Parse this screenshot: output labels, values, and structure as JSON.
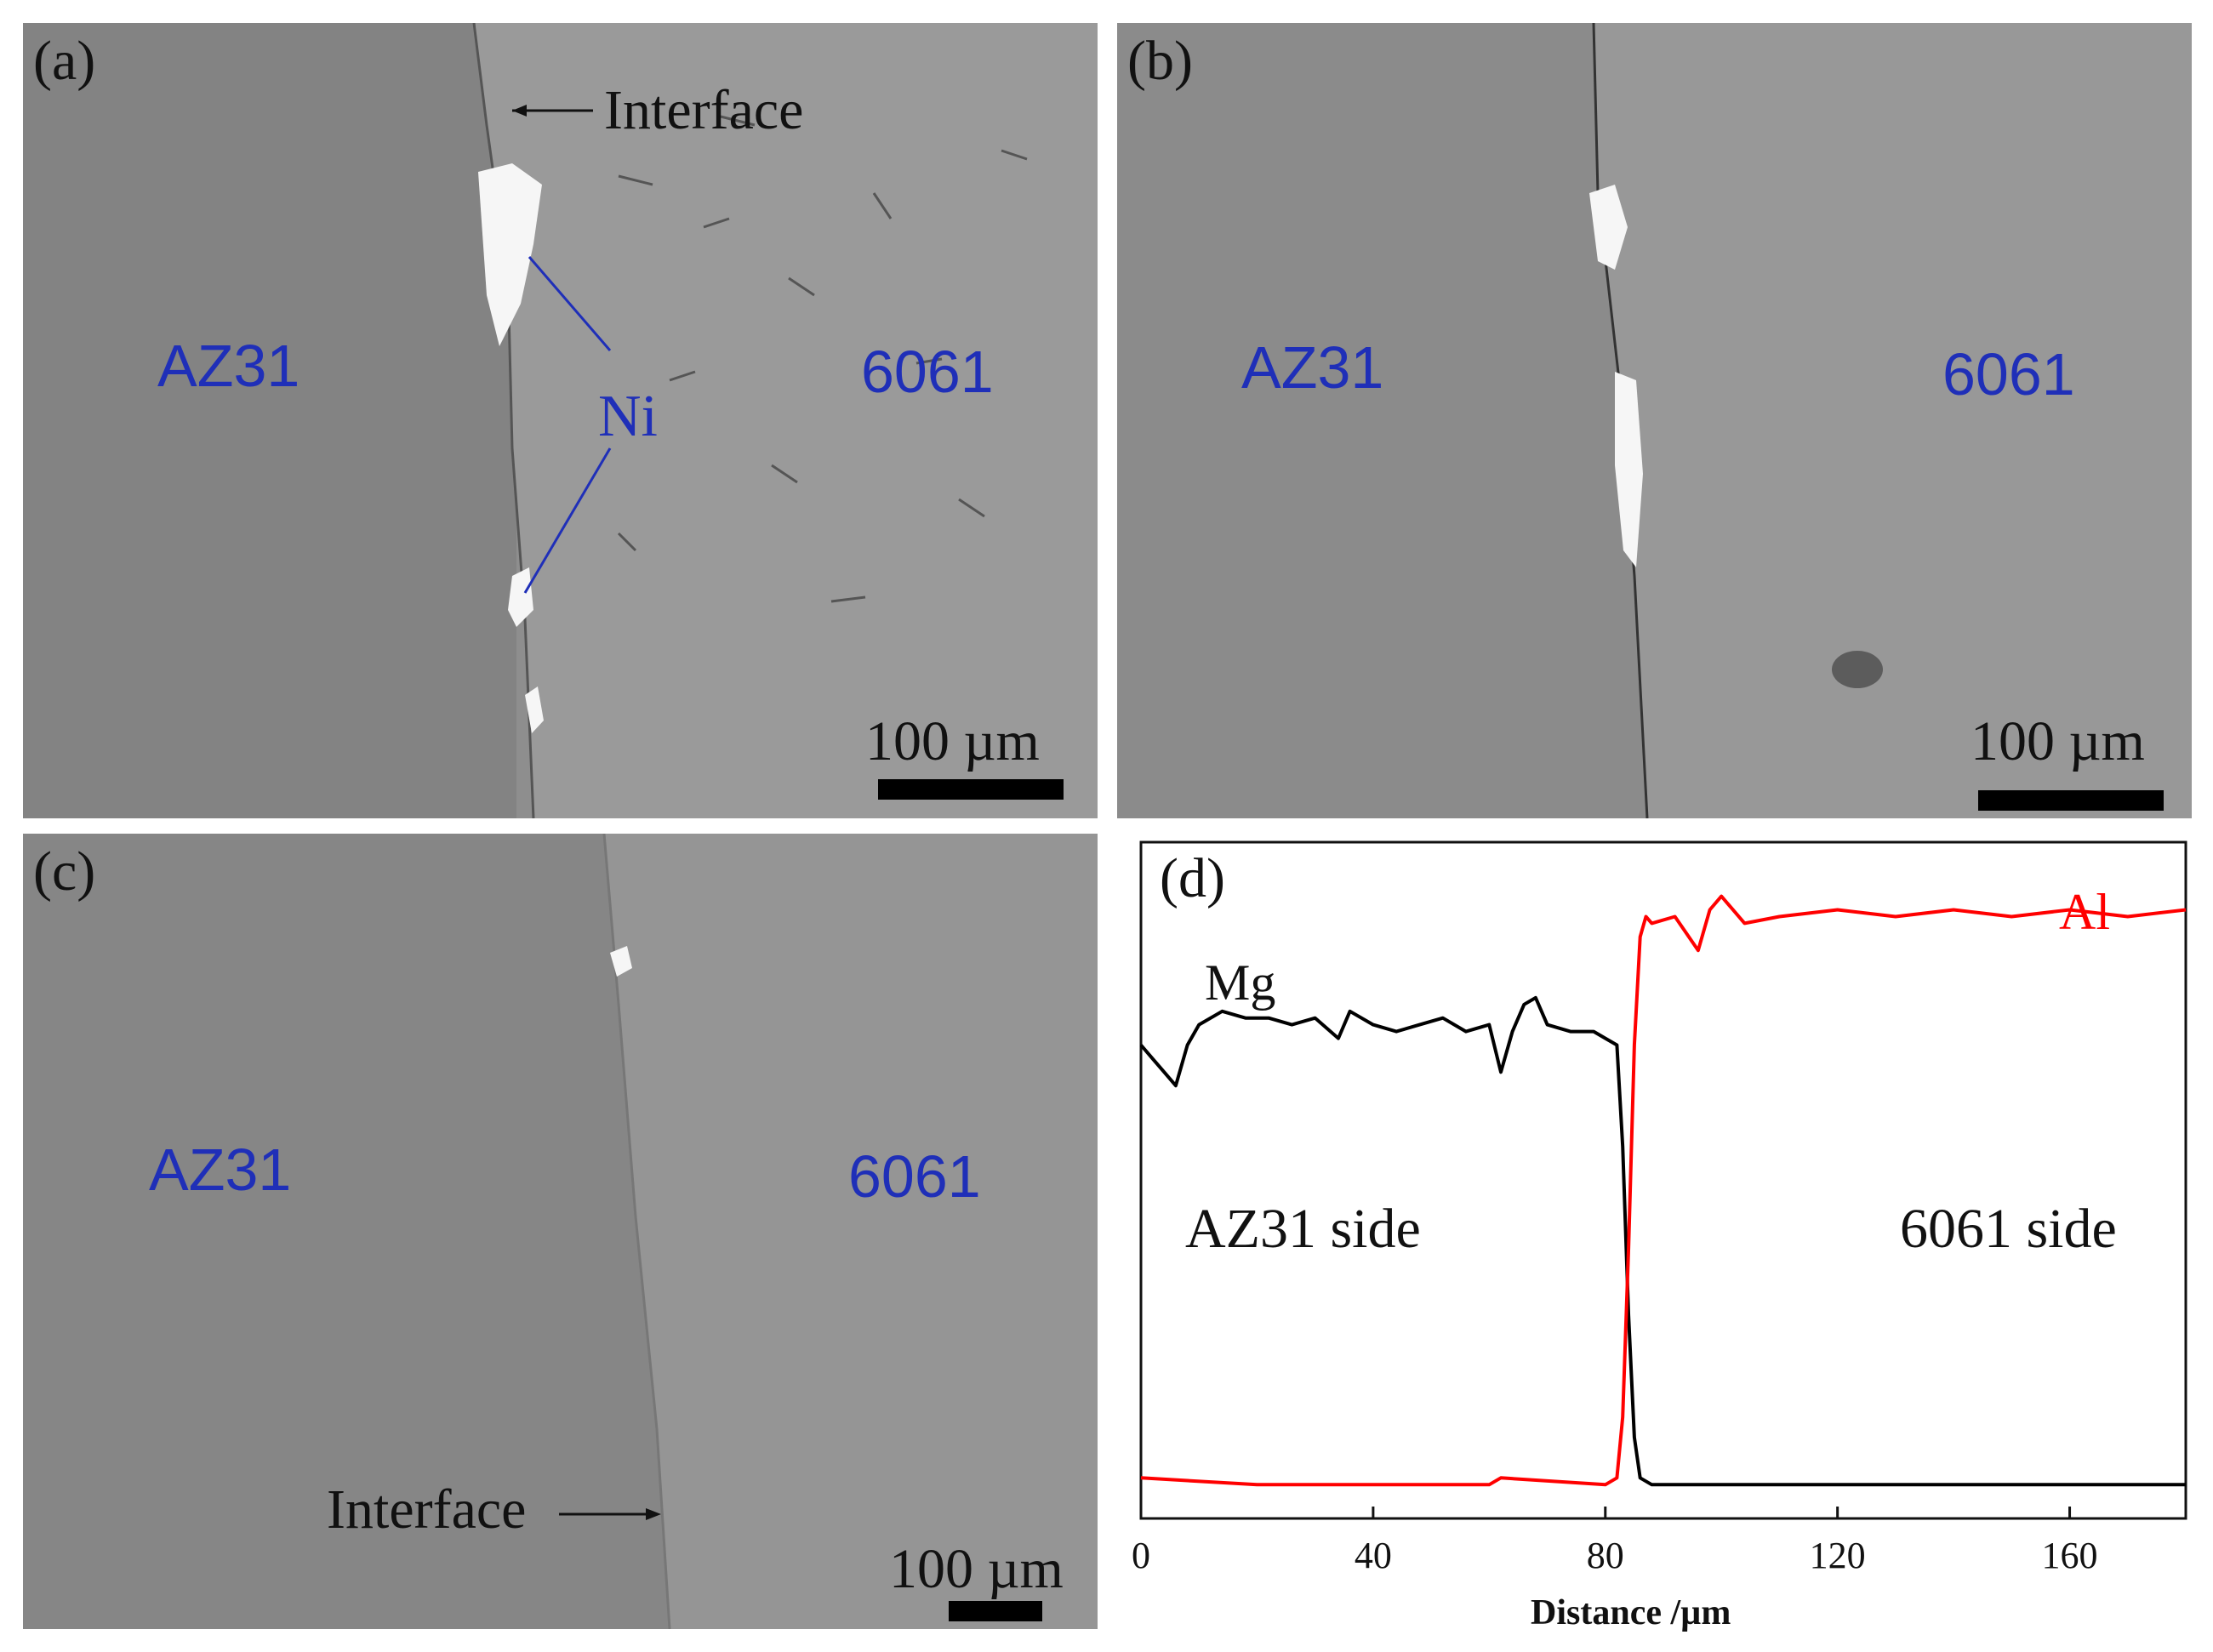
{
  "figure": {
    "panel_a": {
      "label": "(a)",
      "left_material": "AZ31",
      "right_material": "6061",
      "interface_label": "Interface",
      "particle_label": "Ni",
      "scale_bar": "100 µm"
    },
    "panel_b": {
      "label": "(b)",
      "left_material": "AZ31",
      "right_material": "6061",
      "scale_bar": "100 µm"
    },
    "panel_c": {
      "label": "(c)",
      "left_material": "AZ31",
      "right_material": "6061",
      "interface_label": "Interface",
      "scale_bar": "100 µm"
    },
    "panel_d": {
      "label": "(d)",
      "left_side_label": "AZ31 side",
      "right_side_label": "6061 side"
    }
  },
  "colors": {
    "mg_line": "#000000",
    "al_line": "#ff0000",
    "material_label": "#1f2fb8"
  },
  "chart_data": {
    "type": "line",
    "xlabel": "Distance /µm",
    "ylabel": "",
    "xlim": [
      0,
      180
    ],
    "ylim": [
      0,
      1
    ],
    "xticks": [
      0,
      40,
      80,
      120,
      160
    ],
    "series": [
      {
        "name": "Mg",
        "x": [
          0,
          2,
          4,
          6,
          8,
          10,
          14,
          18,
          22,
          26,
          30,
          34,
          36,
          40,
          44,
          48,
          52,
          56,
          60,
          62,
          64,
          66,
          68,
          70,
          74,
          78,
          80,
          82,
          83,
          84,
          85,
          86,
          88,
          100,
          120,
          140,
          160,
          180
        ],
        "y": [
          0.7,
          0.68,
          0.66,
          0.64,
          0.7,
          0.73,
          0.75,
          0.74,
          0.74,
          0.73,
          0.74,
          0.71,
          0.75,
          0.73,
          0.72,
          0.73,
          0.74,
          0.72,
          0.73,
          0.66,
          0.72,
          0.76,
          0.77,
          0.73,
          0.72,
          0.72,
          0.71,
          0.7,
          0.55,
          0.3,
          0.12,
          0.06,
          0.05,
          0.05,
          0.05,
          0.05,
          0.05,
          0.05
        ]
      },
      {
        "name": "Al",
        "x": [
          0,
          20,
          40,
          60,
          62,
          80,
          82,
          83,
          84,
          85,
          86,
          87,
          88,
          92,
          96,
          98,
          100,
          104,
          110,
          120,
          130,
          140,
          150,
          160,
          170,
          180
        ],
        "y": [
          0.06,
          0.05,
          0.05,
          0.05,
          0.06,
          0.05,
          0.06,
          0.15,
          0.4,
          0.7,
          0.86,
          0.89,
          0.88,
          0.89,
          0.84,
          0.9,
          0.92,
          0.88,
          0.89,
          0.9,
          0.89,
          0.9,
          0.89,
          0.9,
          0.89,
          0.9
        ]
      }
    ]
  }
}
